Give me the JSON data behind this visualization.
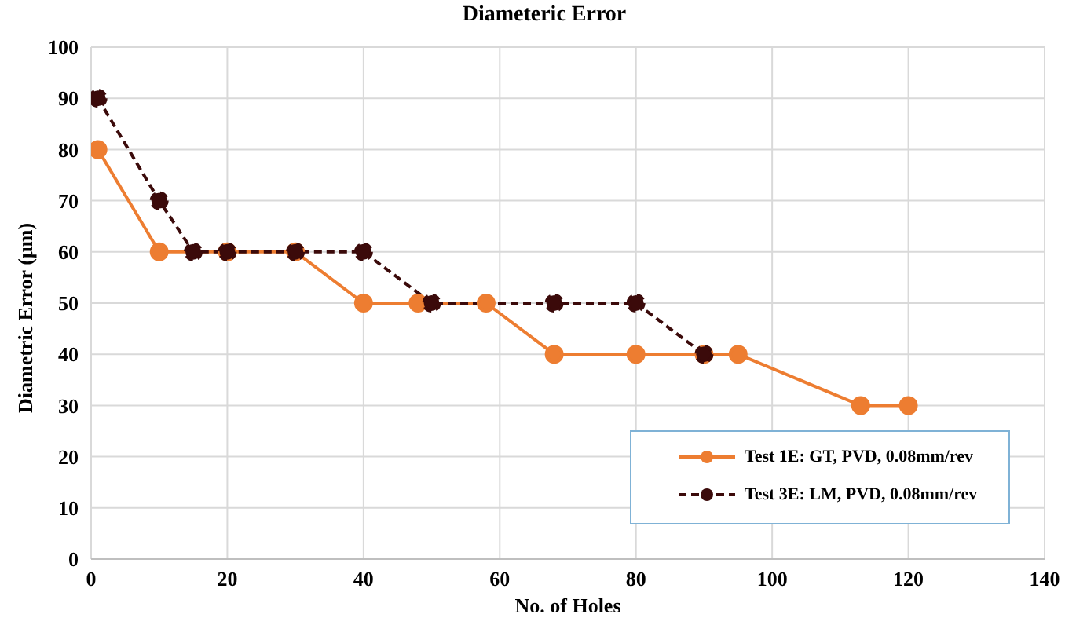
{
  "chart_data": {
    "type": "line",
    "title": "Diameteric Error",
    "xlabel": "No. of Holes",
    "ylabel": "Diametric Error (µm)",
    "series": [
      {
        "name": "Test 1E: GT, PVD, 0.08mm/rev",
        "color": "#ed7d31",
        "line_style": "solid",
        "x": [
          1,
          10,
          20,
          30,
          40,
          48,
          58,
          68,
          80,
          90,
          95,
          113,
          120
        ],
        "values": [
          80,
          60,
          60,
          60,
          50,
          50,
          50,
          40,
          40,
          40,
          40,
          30,
          30
        ]
      },
      {
        "name": "Test 3E: LM, PVD, 0.08mm/rev",
        "color": "#3b0a0a",
        "line_style": "dashed",
        "x": [
          1,
          10,
          15,
          20,
          30,
          40,
          50,
          68,
          80,
          90
        ],
        "values": [
          90,
          70,
          60,
          60,
          60,
          60,
          50,
          50,
          50,
          40
        ]
      }
    ],
    "xlim": [
      0,
      140
    ],
    "xticks": [
      0,
      20,
      40,
      60,
      80,
      100,
      120,
      140
    ],
    "ylim": [
      0,
      100
    ],
    "yticks": [
      0,
      10,
      20,
      30,
      40,
      50,
      60,
      70,
      80,
      90,
      100
    ],
    "grid": true,
    "legend": "bottom right",
    "marker": "circle"
  }
}
